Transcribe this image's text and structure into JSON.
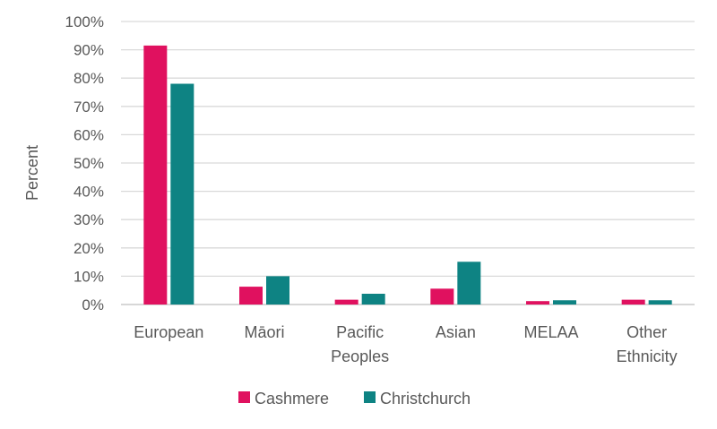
{
  "chart_data": {
    "type": "bar",
    "categories": [
      [
        "European"
      ],
      [
        "Māori"
      ],
      [
        "Pacific",
        "Peoples"
      ],
      [
        "Asian"
      ],
      [
        "MELAA"
      ],
      [
        "Other",
        "Ethnicity"
      ]
    ],
    "series": [
      {
        "name": "Cashmere",
        "color": "#E0115F",
        "values": [
          91.5,
          6.3,
          1.7,
          5.6,
          1.2,
          1.7
        ]
      },
      {
        "name": "Christchurch",
        "color": "#0E8383",
        "values": [
          78,
          10,
          3.8,
          15.1,
          1.5,
          1.5
        ]
      }
    ],
    "ylabel": "Percent",
    "xlabel": "",
    "title": "",
    "ylim": [
      0,
      100
    ],
    "yticks": [
      0,
      10,
      20,
      30,
      40,
      50,
      60,
      70,
      80,
      90,
      100
    ],
    "ytick_format": "%",
    "grid": true,
    "legend": "bottom-center"
  }
}
